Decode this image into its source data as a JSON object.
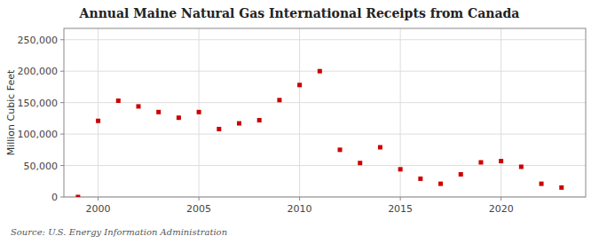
{
  "chart_data": {
    "type": "scatter",
    "title": "Annual Maine Natural Gas International Receipts from Canada",
    "ylabel": "Million Cubic Feet",
    "annotations": [
      "Source: U.S. Energy Information Administration"
    ],
    "x": [
      1999,
      2000,
      2001,
      2002,
      2003,
      2004,
      2005,
      2006,
      2007,
      2008,
      2009,
      2010,
      2011,
      2012,
      2013,
      2014,
      2015,
      2016,
      2017,
      2018,
      2019,
      2020,
      2021,
      2022,
      2023
    ],
    "values": [
      1,
      121000,
      153000,
      144000,
      135000,
      126000,
      135000,
      108000,
      117000,
      122000,
      154000,
      178000,
      200000,
      75000,
      54000,
      79000,
      44000,
      29000,
      21000,
      36000,
      55000,
      57000,
      48000,
      21000,
      15000
    ],
    "color": "#cc0000",
    "marker": "square",
    "grid": true,
    "xlim": [
      1998.3,
      2024.2
    ],
    "xticks": [
      2000,
      2005,
      2010,
      2015,
      2020
    ],
    "ylim": [
      0,
      268000
    ],
    "yticks": [
      0,
      {
        "value": 50000,
        "label": "50,000"
      },
      {
        "value": 100000,
        "label": "100,000"
      },
      {
        "value": 150000,
        "label": "150,000"
      },
      {
        "value": 200000,
        "label": "200,000"
      },
      {
        "value": 250000,
        "label": "250,000"
      }
    ]
  }
}
